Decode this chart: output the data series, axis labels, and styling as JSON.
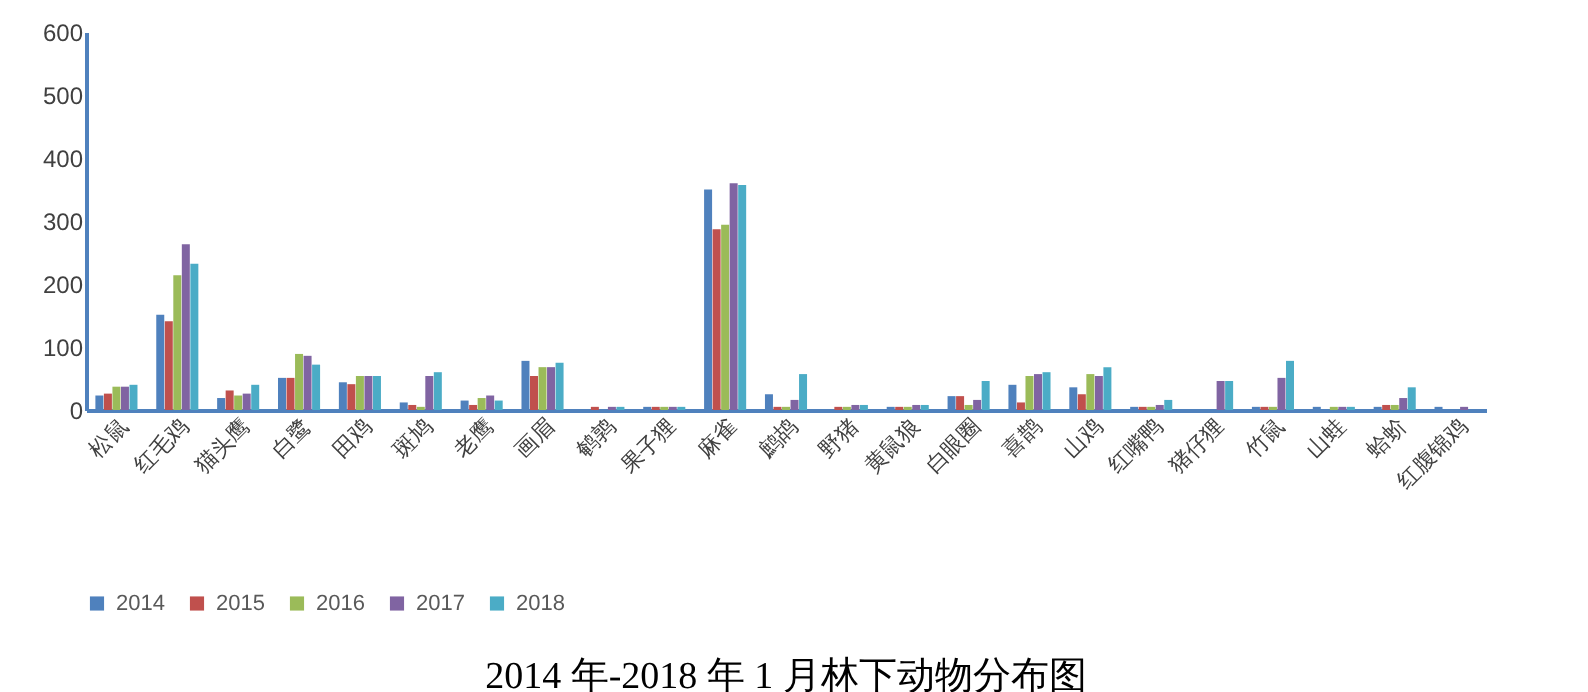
{
  "chart_data": {
    "type": "bar",
    "title": "2014 年-2018 年 1 月林下动物分布图",
    "categories": [
      "松鼠",
      "红毛鸡",
      "猫头鹰",
      "白鹭",
      "田鸡",
      "斑鸠",
      "老鹰",
      "画眉",
      "鹌鹑",
      "果子狸",
      "麻雀",
      "鹧鸪",
      "野猪",
      "黄鼠狼",
      "白眼圈",
      "喜鹊",
      "山鸡",
      "红嘴鸭",
      "猪仔狸",
      "竹鼠",
      "山蛙",
      "蛤蚧",
      "红腹锦鸡"
    ],
    "series": [
      {
        "name": "2014",
        "color": "#4f81bd",
        "values": [
          23,
          151,
          19,
          51,
          44,
          12,
          15,
          78,
          0,
          5,
          350,
          25,
          0,
          5,
          22,
          40,
          36,
          5,
          0,
          5,
          5,
          5,
          5
        ]
      },
      {
        "name": "2015",
        "color": "#c0504d",
        "values": [
          26,
          141,
          31,
          51,
          41,
          8,
          8,
          54,
          5,
          5,
          287,
          5,
          5,
          5,
          22,
          12,
          25,
          5,
          0,
          5,
          0,
          8,
          0
        ]
      },
      {
        "name": "2016",
        "color": "#9bbb59",
        "values": [
          37,
          214,
          23,
          89,
          54,
          5,
          19,
          68,
          0,
          5,
          294,
          5,
          5,
          5,
          8,
          54,
          57,
          5,
          0,
          5,
          5,
          8,
          0
        ]
      },
      {
        "name": "2017",
        "color": "#8064a2",
        "values": [
          37,
          263,
          26,
          86,
          54,
          54,
          23,
          68,
          5,
          5,
          360,
          16,
          8,
          8,
          16,
          57,
          54,
          8,
          46,
          51,
          5,
          19,
          5
        ]
      },
      {
        "name": "2018",
        "color": "#4bacc6",
        "values": [
          40,
          232,
          40,
          72,
          54,
          60,
          15,
          75,
          5,
          5,
          357,
          57,
          8,
          8,
          46,
          60,
          68,
          16,
          46,
          78,
          5,
          36,
          0
        ]
      }
    ],
    "ylim": [
      0,
      600
    ],
    "yticks": [
      0,
      100,
      200,
      300,
      400,
      500,
      600
    ],
    "grid": false,
    "legend": "bottom"
  }
}
